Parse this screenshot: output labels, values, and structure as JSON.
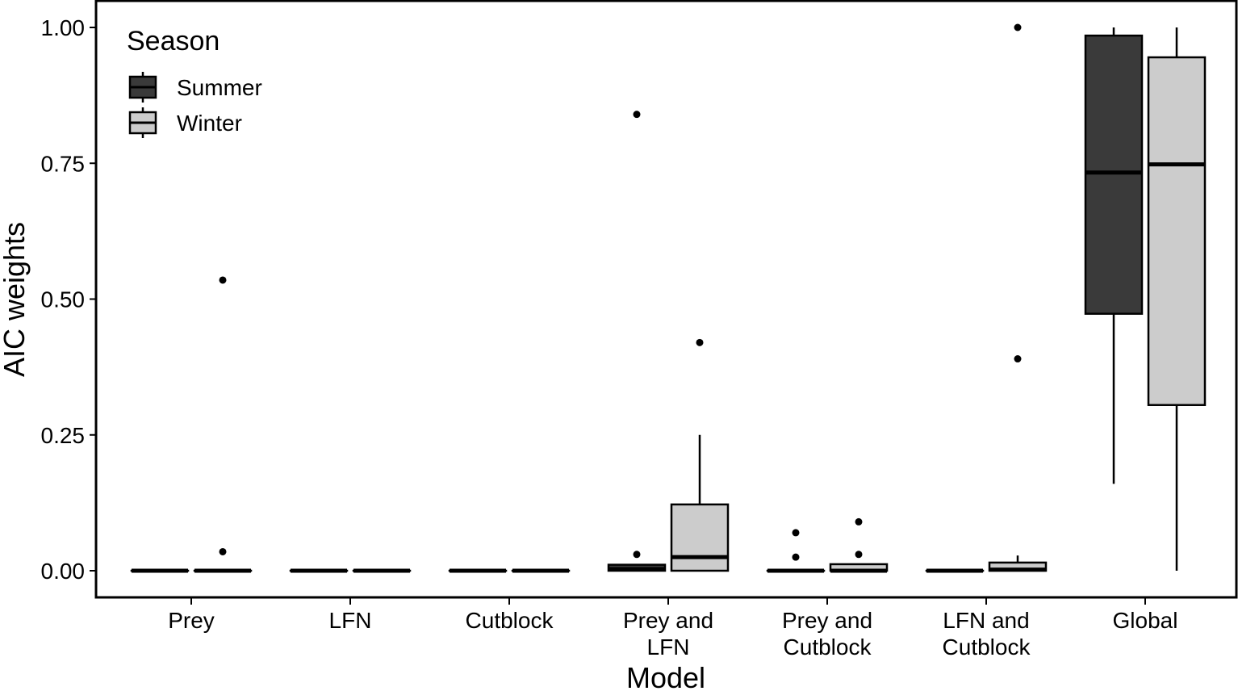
{
  "chart_data": {
    "type": "boxplot",
    "xlabel": "Model",
    "ylabel": "AIC weights",
    "ylim": [
      -0.05,
      1.05
    ],
    "yticks": [
      "0.00",
      "0.25",
      "0.50",
      "0.75",
      "1.00"
    ],
    "ytick_values": [
      0,
      0.25,
      0.5,
      0.75,
      1.0
    ],
    "categories": [
      [
        "Prey"
      ],
      [
        "LFN"
      ],
      [
        "Cutblock"
      ],
      [
        "Prey and",
        "LFN"
      ],
      [
        "Prey and",
        "Cutblock"
      ],
      [
        "LFN and",
        "Cutblock"
      ],
      [
        "Global"
      ]
    ],
    "legend": {
      "title": "Season",
      "placement": "top-left",
      "entries": [
        "Summer",
        "Winter"
      ]
    },
    "colors": {
      "Summer": "#3a3a3a",
      "Winter": "#cccccc"
    },
    "series": [
      {
        "name": "Summer",
        "boxes": [
          {
            "min": 0,
            "q1": 0,
            "median": 0,
            "q3": 0,
            "max": 0,
            "outliers": []
          },
          {
            "min": 0,
            "q1": 0,
            "median": 0,
            "q3": 0,
            "max": 0,
            "outliers": []
          },
          {
            "min": 0,
            "q1": 0,
            "median": 0,
            "q3": 0,
            "max": 0,
            "outliers": []
          },
          {
            "min": 0,
            "q1": 0,
            "median": 0.003,
            "q3": 0.011,
            "max": 0.011,
            "outliers": [
              0.03,
              0.84
            ]
          },
          {
            "min": 0,
            "q1": 0,
            "median": 0,
            "q3": 0,
            "max": 0,
            "outliers": [
              0.025,
              0.07
            ]
          },
          {
            "min": 0,
            "q1": 0,
            "median": 0,
            "q3": 0,
            "max": 0,
            "outliers": []
          },
          {
            "min": 0.16,
            "q1": 0.473,
            "median": 0.733,
            "q3": 0.985,
            "max": 1.0,
            "outliers": []
          }
        ]
      },
      {
        "name": "Winter",
        "boxes": [
          {
            "min": 0,
            "q1": 0,
            "median": 0,
            "q3": 0,
            "max": 0,
            "outliers": [
              0.035,
              0.535
            ]
          },
          {
            "min": 0,
            "q1": 0,
            "median": 0,
            "q3": 0,
            "max": 0,
            "outliers": []
          },
          {
            "min": 0,
            "q1": 0,
            "median": 0,
            "q3": 0,
            "max": 0,
            "outliers": []
          },
          {
            "min": 0,
            "q1": 0,
            "median": 0.025,
            "q3": 0.122,
            "max": 0.25,
            "outliers": [
              0.42
            ]
          },
          {
            "min": 0,
            "q1": 0,
            "median": 0,
            "q3": 0.012,
            "max": 0.012,
            "outliers": [
              0.03,
              0.09
            ]
          },
          {
            "min": 0,
            "q1": 0,
            "median": 0.002,
            "q3": 0.015,
            "max": 0.028,
            "outliers": [
              0.39,
              1.0
            ]
          },
          {
            "min": 0,
            "q1": 0.305,
            "median": 0.748,
            "q3": 0.945,
            "max": 1.0,
            "outliers": []
          }
        ]
      }
    ]
  }
}
